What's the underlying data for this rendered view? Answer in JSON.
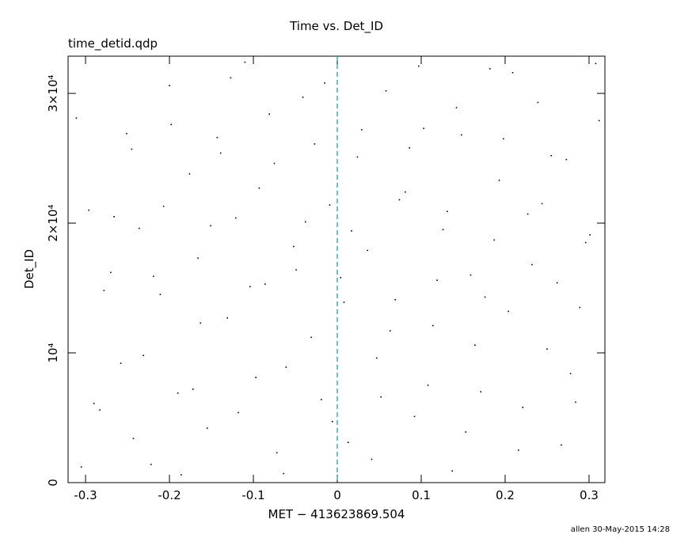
{
  "chart_data": {
    "type": "scatter",
    "title": "Time vs. Det_ID",
    "subtitle": "time_detid.qdp",
    "xlabel": "MET − 413623869.504",
    "ylabel": "Det_ID",
    "footer": "allen 30-May-2015 14:28",
    "color": "#000000",
    "ref_line_x": 0,
    "ref_line_color": "#00a0a0",
    "xlim": [
      -0.3208,
      0.3189
    ],
    "ylim": [
      0,
      32868
    ],
    "xticks": [
      -0.3,
      -0.2,
      -0.1,
      0,
      0.1,
      0.2,
      0.3
    ],
    "yticks": [
      0,
      {
        "value": 10000,
        "label": "10⁴"
      },
      {
        "value": 20000,
        "label": "2×10⁴"
      },
      {
        "value": 30000,
        "label": "3×10⁴"
      }
    ],
    "x": [
      -0.305,
      -0.29,
      -0.278,
      -0.266,
      -0.251,
      -0.243,
      -0.231,
      -0.219,
      -0.207,
      -0.198,
      -0.186,
      -0.172,
      -0.163,
      -0.151,
      -0.139,
      -0.127,
      -0.118,
      -0.104,
      -0.093,
      -0.081,
      -0.072,
      -0.061,
      -0.049,
      -0.038,
      -0.027,
      -0.015,
      -0.006,
      0.008,
      0.017,
      0.029,
      0.041,
      0.052,
      0.063,
      0.074,
      0.086,
      0.097,
      0.108,
      0.119,
      0.131,
      0.142,
      0.153,
      0.164,
      0.176,
      0.187,
      0.198,
      0.209,
      0.221,
      0.232,
      0.244,
      0.255,
      0.267,
      0.278,
      0.289,
      0.301,
      0.312,
      -0.311,
      -0.296,
      -0.283,
      -0.27,
      -0.258,
      -0.245,
      -0.236,
      -0.222,
      -0.211,
      -0.2,
      -0.19,
      -0.176,
      -0.166,
      -0.155,
      -0.143,
      -0.131,
      -0.121,
      -0.11,
      -0.097,
      -0.086,
      -0.075,
      -0.064,
      -0.052,
      -0.041,
      -0.031,
      -0.019,
      -0.009,
      0.004,
      0.013,
      0.024,
      0.036,
      0.047,
      0.058,
      0.069,
      0.081,
      0.092,
      0.103,
      0.114,
      0.126,
      0.137,
      0.148,
      0.159,
      0.171,
      0.182,
      0.193,
      0.204,
      0.216,
      0.227,
      0.239,
      0.25,
      0.262,
      0.273,
      0.284,
      0.296,
      0.308
    ],
    "values": [
      1200,
      6100,
      14800,
      20500,
      26900,
      3400,
      9800,
      15900,
      21300,
      27600,
      600,
      7200,
      12300,
      19800,
      25400,
      31200,
      5400,
      15100,
      22700,
      28400,
      2300,
      8900,
      16400,
      20100,
      26100,
      30800,
      4700,
      13900,
      19400,
      27200,
      1800,
      6600,
      11700,
      21800,
      25800,
      32100,
      7500,
      15600,
      20900,
      28900,
      3900,
      10600,
      14300,
      18700,
      26500,
      31600,
      5800,
      16800,
      21500,
      25200,
      2900,
      8400,
      13500,
      19100,
      27900,
      28100,
      21000,
      5600,
      16200,
      9200,
      25700,
      19600,
      1400,
      14500,
      30600,
      6900,
      23800,
      17300,
      4200,
      26600,
      12700,
      20400,
      32400,
      8100,
      15300,
      24600,
      700,
      18200,
      29700,
      11200,
      6400,
      21400,
      15800,
      3100,
      25100,
      17900,
      9600,
      30200,
      14100,
      22400,
      5100,
      27300,
      12100,
      19500,
      900,
      26800,
      16000,
      7000,
      31900,
      23300,
      13200,
      2500,
      20700,
      29300,
      10300,
      15400,
      24900,
      6200,
      18500,
      32300
    ]
  }
}
